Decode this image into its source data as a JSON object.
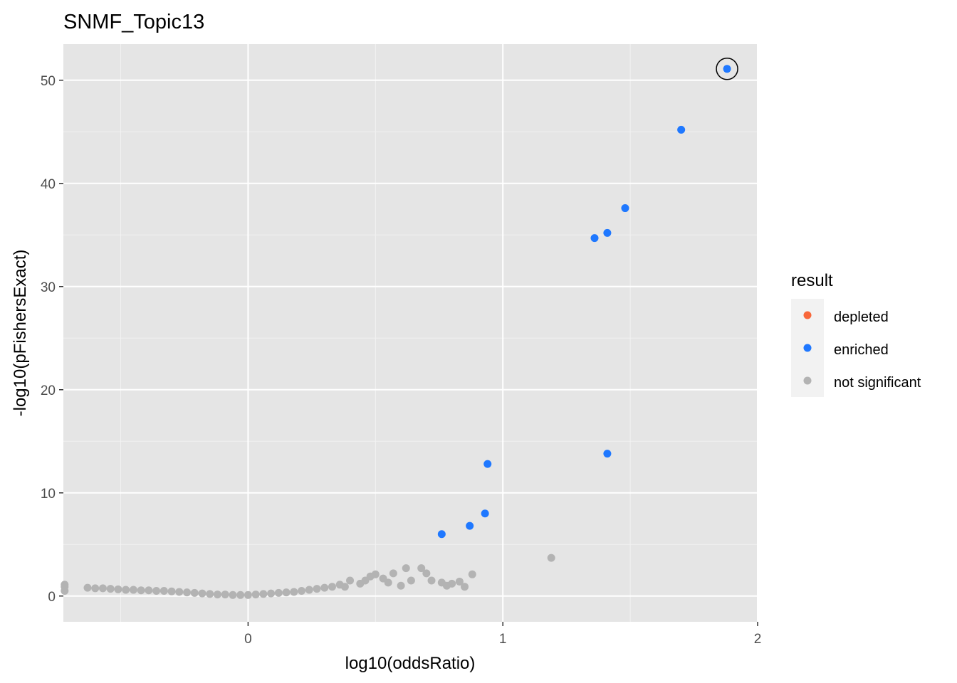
{
  "chart_data": {
    "type": "scatter",
    "title": "SNMF_Topic13",
    "xlabel": "log10(oddsRatio)",
    "ylabel": "-log10(pFishersExact)",
    "xlim": [
      -0.725,
      2.0
    ],
    "ylim": [
      -2.5,
      53.5
    ],
    "x_ticks": [
      0,
      1,
      2
    ],
    "y_ticks": [
      0,
      10,
      20,
      30,
      40,
      50
    ],
    "x_tick_labels": [
      "0",
      "1",
      "2"
    ],
    "y_tick_labels": [
      "0",
      "10",
      "20",
      "30",
      "40",
      "50"
    ],
    "grid": true,
    "panel_background": "#e5e5e5",
    "legend": {
      "title": "result",
      "placement": "right",
      "entries": [
        {
          "label": "depleted",
          "color": "#f8673a"
        },
        {
          "label": "enriched",
          "color": "#1f78ff"
        },
        {
          "label": "not significant",
          "color": "#b3b3b3"
        }
      ]
    },
    "highlighted_point": {
      "x": 1.88,
      "y": 51.1
    },
    "series": [
      {
        "name": "enriched",
        "color": "#1f78ff",
        "points": [
          [
            1.88,
            51.1
          ],
          [
            1.7,
            45.2
          ],
          [
            1.48,
            37.6
          ],
          [
            1.41,
            35.2
          ],
          [
            1.36,
            34.7
          ],
          [
            1.41,
            13.8
          ],
          [
            0.94,
            12.8
          ],
          [
            0.93,
            8.0
          ],
          [
            0.87,
            6.8
          ],
          [
            0.76,
            6.0
          ]
        ]
      },
      {
        "name": "not significant",
        "color": "#b3b3b3",
        "points": [
          [
            1.19,
            3.7
          ],
          [
            0.88,
            2.1
          ],
          [
            0.85,
            0.9
          ],
          [
            0.83,
            1.4
          ],
          [
            0.8,
            1.2
          ],
          [
            0.78,
            1.0
          ],
          [
            0.76,
            1.3
          ],
          [
            0.72,
            1.5
          ],
          [
            0.7,
            2.2
          ],
          [
            0.68,
            2.7
          ],
          [
            0.64,
            1.5
          ],
          [
            0.62,
            2.7
          ],
          [
            0.6,
            1.0
          ],
          [
            0.57,
            2.2
          ],
          [
            0.55,
            1.3
          ],
          [
            0.53,
            1.7
          ],
          [
            0.5,
            2.1
          ],
          [
            0.48,
            1.9
          ],
          [
            0.46,
            1.5
          ],
          [
            0.44,
            1.2
          ],
          [
            0.4,
            1.5
          ],
          [
            0.38,
            0.9
          ],
          [
            0.36,
            1.1
          ],
          [
            0.33,
            0.9
          ],
          [
            0.3,
            0.8
          ],
          [
            0.27,
            0.7
          ],
          [
            0.24,
            0.6
          ],
          [
            0.21,
            0.5
          ],
          [
            0.18,
            0.4
          ],
          [
            0.15,
            0.35
          ],
          [
            0.12,
            0.3
          ],
          [
            0.09,
            0.25
          ],
          [
            0.06,
            0.2
          ],
          [
            0.03,
            0.15
          ],
          [
            0.0,
            0.1
          ],
          [
            -0.03,
            0.1
          ],
          [
            -0.06,
            0.1
          ],
          [
            -0.09,
            0.15
          ],
          [
            -0.12,
            0.15
          ],
          [
            -0.15,
            0.2
          ],
          [
            -0.18,
            0.25
          ],
          [
            -0.21,
            0.3
          ],
          [
            -0.24,
            0.35
          ],
          [
            -0.27,
            0.4
          ],
          [
            -0.3,
            0.45
          ],
          [
            -0.33,
            0.5
          ],
          [
            -0.36,
            0.5
          ],
          [
            -0.39,
            0.55
          ],
          [
            -0.42,
            0.55
          ],
          [
            -0.45,
            0.6
          ],
          [
            -0.48,
            0.6
          ],
          [
            -0.51,
            0.65
          ],
          [
            -0.54,
            0.7
          ],
          [
            -0.57,
            0.75
          ],
          [
            -0.6,
            0.75
          ],
          [
            -0.63,
            0.8
          ],
          [
            -0.72,
            0.5
          ],
          [
            -0.72,
            0.9
          ],
          [
            -0.72,
            1.1
          ]
        ]
      }
    ]
  }
}
